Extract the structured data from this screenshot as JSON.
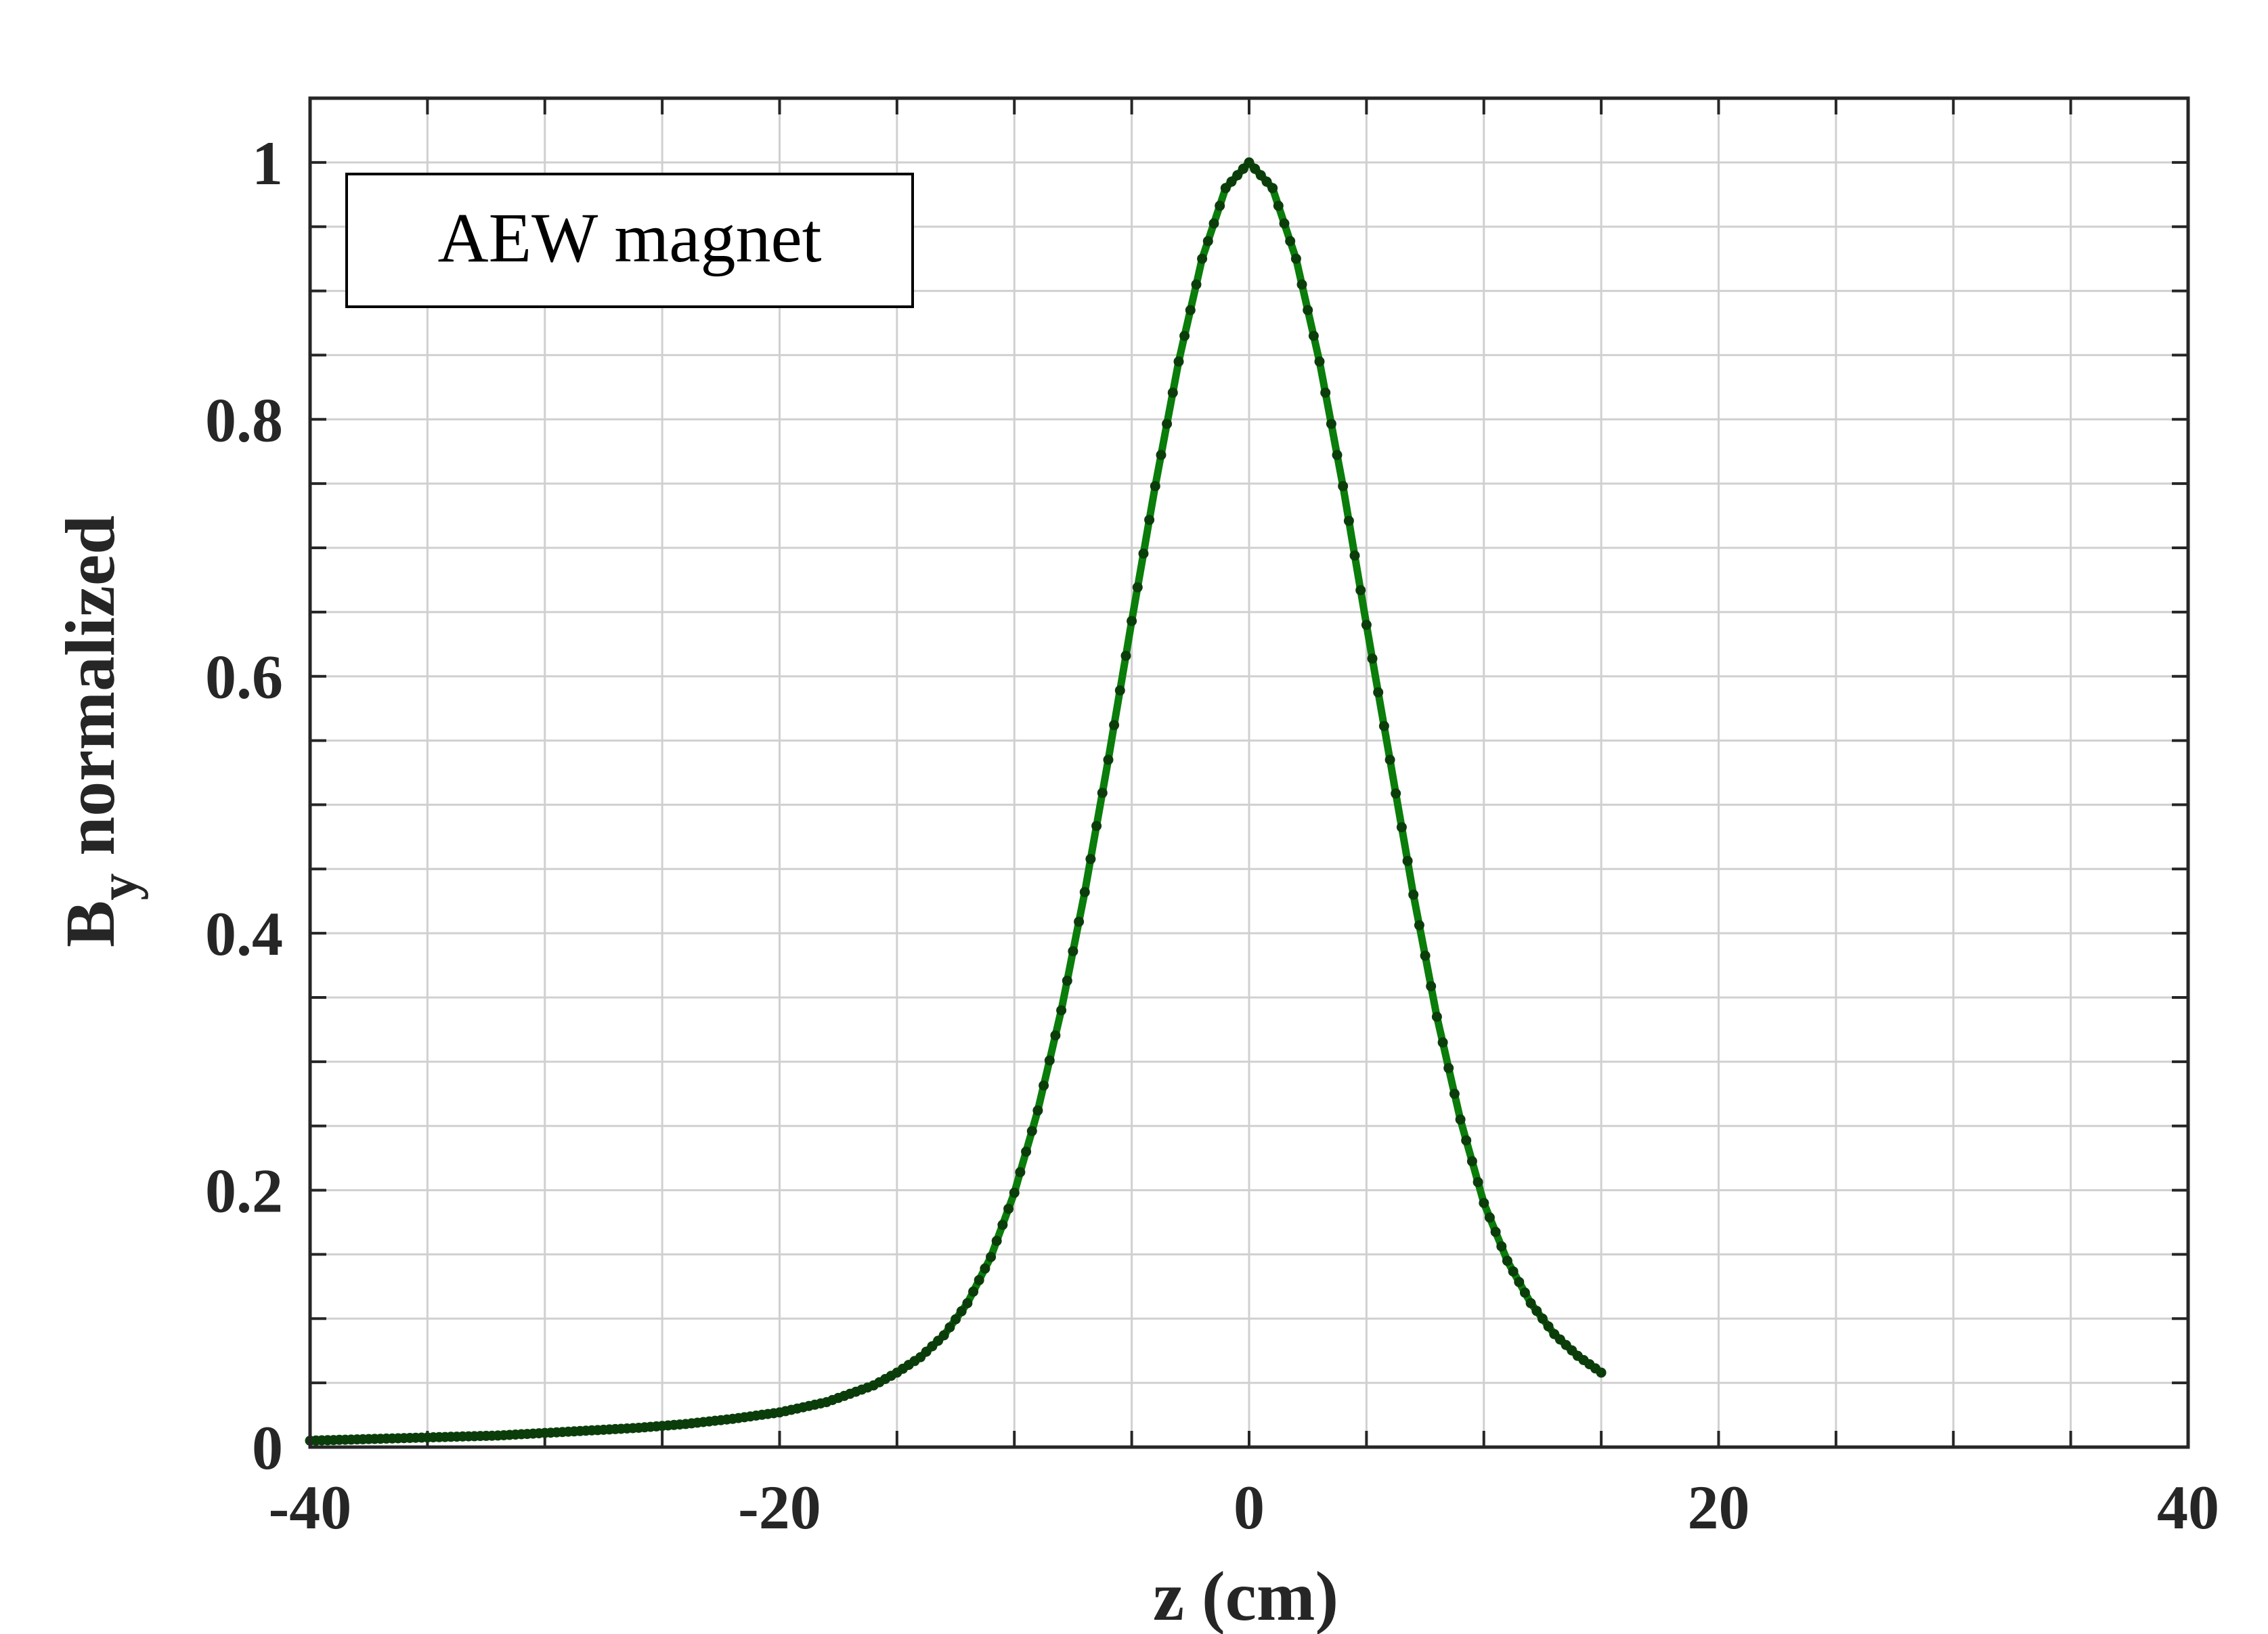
{
  "chart_data": {
    "type": "line",
    "title": "",
    "xlabel": "z (cm)",
    "ylabel_main": "B",
    "ylabel_sub": "y",
    "ylabel_rest": " normalized",
    "xlim": [
      -40,
      40
    ],
    "ylim": [
      0,
      1.05
    ],
    "xticks": [
      -40,
      -20,
      0,
      20,
      40
    ],
    "xtick_labels": [
      "-40",
      "-20",
      "0",
      "20",
      "40"
    ],
    "yticks": [
      0,
      0.2,
      0.4,
      0.6,
      0.8,
      1
    ],
    "ytick_labels": [
      "0",
      "0.2",
      "0.4",
      "0.6",
      "0.8",
      "1"
    ],
    "minor_x_step": 5,
    "minor_y_step": 0.05,
    "grid": true,
    "legend": {
      "text": "AEW magnet",
      "placement": "top-left"
    },
    "colors": {
      "line": "#0a7d0a",
      "marker": "#0b3d0b",
      "axis": "#262626",
      "grid": "#d0d0d0"
    },
    "series": [
      {
        "x": [
          -40,
          -38,
          -36,
          -34,
          -32,
          -30,
          -28,
          -26,
          -24,
          -22,
          -20,
          -18,
          -16,
          -15,
          -14,
          -13,
          -12,
          -11,
          -10,
          -9,
          -8,
          -7,
          -6,
          -5,
          -4,
          -3,
          -2,
          -1,
          0,
          1,
          2,
          3,
          4,
          5,
          6,
          7,
          8,
          9,
          10,
          11,
          12,
          13,
          14,
          15
        ],
        "y": [
          0.005,
          0.006,
          0.007,
          0.008,
          0.009,
          0.011,
          0.013,
          0.015,
          0.018,
          0.022,
          0.027,
          0.035,
          0.048,
          0.058,
          0.07,
          0.087,
          0.112,
          0.148,
          0.198,
          0.262,
          0.34,
          0.432,
          0.535,
          0.643,
          0.748,
          0.845,
          0.925,
          0.98,
          1.0,
          0.98,
          0.925,
          0.845,
          0.748,
          0.64,
          0.535,
          0.43,
          0.335,
          0.255,
          0.19,
          0.145,
          0.112,
          0.088,
          0.071,
          0.058
        ]
      }
    ]
  }
}
